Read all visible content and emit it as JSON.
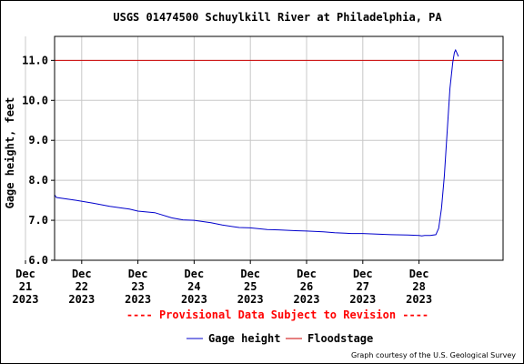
{
  "chart_data": {
    "type": "line",
    "title": "USGS 01474500 Schuylkill River at Philadelphia, PA",
    "xlabel": "",
    "ylabel": "Gage height, feet",
    "xlim": [
      0,
      7.8
    ],
    "ylim": [
      6.0,
      11.6
    ],
    "y_ticks": [
      "6.0",
      "7.0",
      "8.0",
      "9.0",
      "10.0",
      "11.0"
    ],
    "x_ticks": [
      {
        "lines": [
          "Dec",
          "21",
          "2023"
        ]
      },
      {
        "lines": [
          "Dec",
          "22",
          "2023"
        ]
      },
      {
        "lines": [
          "Dec",
          "23",
          "2023"
        ]
      },
      {
        "lines": [
          "Dec",
          "24",
          "2023"
        ]
      },
      {
        "lines": [
          "Dec",
          "25",
          "2023"
        ]
      },
      {
        "lines": [
          "Dec",
          "26",
          "2023"
        ]
      },
      {
        "lines": [
          "Dec",
          "27",
          "2023"
        ]
      },
      {
        "lines": [
          "Dec",
          "28",
          "2023"
        ]
      }
    ],
    "grid": true,
    "series": [
      {
        "name": "Gage height",
        "color": "#0000cc",
        "x": [
          -0.45,
          0.0,
          0.3,
          0.55,
          0.9,
          1.2,
          1.5,
          1.7,
          1.85,
          2.0,
          2.3,
          2.6,
          2.8,
          3.0,
          3.3,
          3.5,
          3.8,
          4.0,
          4.3,
          4.5,
          4.8,
          5.0,
          5.3,
          5.5,
          5.8,
          6.0,
          6.3,
          6.5,
          6.8,
          7.0,
          7.05,
          7.1,
          7.2,
          7.3,
          7.35,
          7.4,
          7.45,
          7.5,
          7.55,
          7.6,
          7.63,
          7.65,
          7.7
        ],
        "y": [
          7.83,
          7.72,
          7.64,
          7.57,
          7.5,
          7.43,
          7.35,
          7.31,
          7.28,
          7.23,
          7.19,
          7.06,
          7.01,
          7.0,
          6.94,
          6.88,
          6.82,
          6.81,
          6.77,
          6.76,
          6.74,
          6.73,
          6.71,
          6.69,
          6.67,
          6.67,
          6.65,
          6.64,
          6.63,
          6.62,
          6.61,
          6.62,
          6.62,
          6.64,
          6.8,
          7.3,
          8.1,
          9.2,
          10.3,
          10.95,
          11.2,
          11.26,
          11.1
        ]
      }
    ],
    "floodstage": {
      "name": "Floodstage",
      "value": 11.0,
      "color": "#cc0000"
    },
    "annotation": "---- Provisional Data Subject to Revision ----",
    "credit": "Graph courtesy of the U.S. Geological Survey",
    "legend_placement": "bottom-center"
  }
}
